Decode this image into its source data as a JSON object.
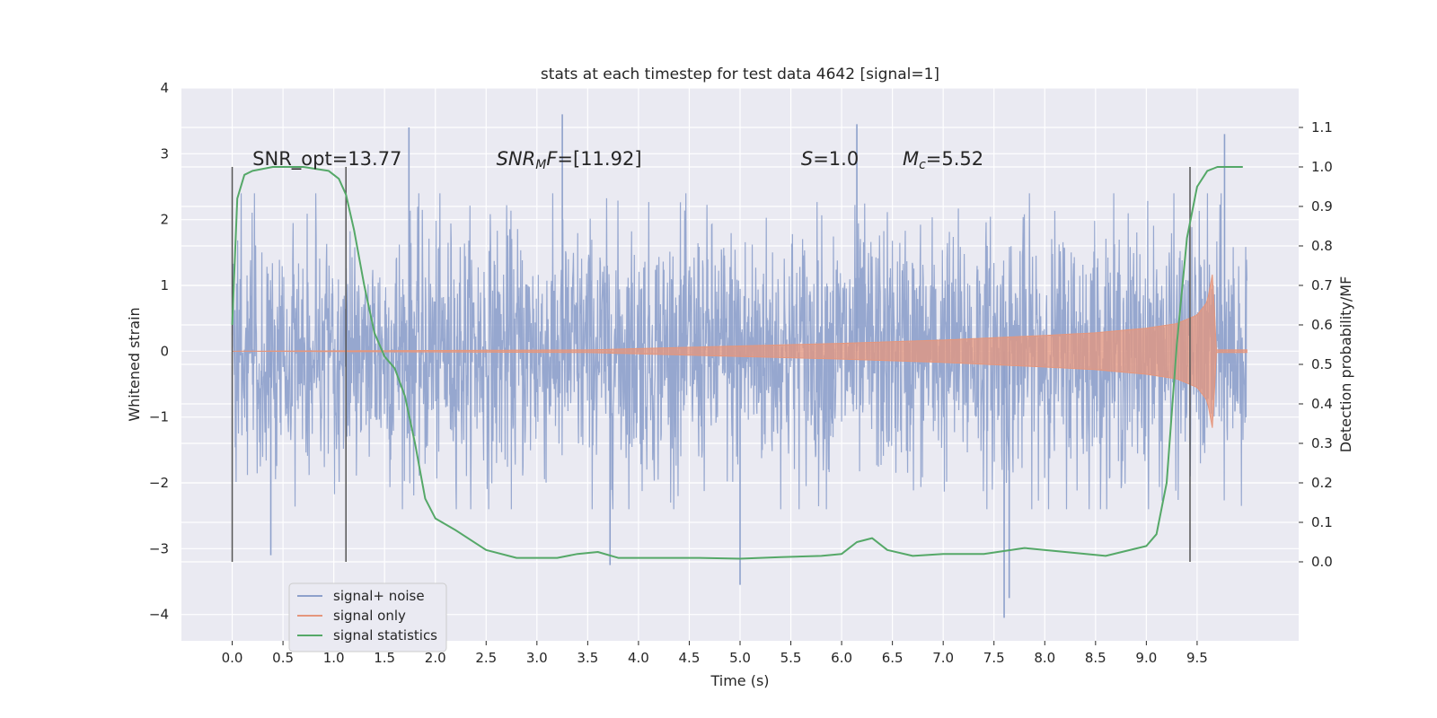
{
  "chart_data": {
    "type": "line",
    "title": "stats at each timestep for test data 4642 [signal=1]",
    "xlabel": "Time (s)",
    "ylabel": "Whitened strain",
    "y2label": "Detection probability/MF",
    "xlim": [
      -0.5,
      10.5
    ],
    "ylim": [
      -4.4,
      4.0
    ],
    "y2lim": [
      -0.2,
      1.2
    ],
    "grid": true,
    "legend_position": "lower-left",
    "x_ticks": [
      0.0,
      0.5,
      1.0,
      1.5,
      2.0,
      2.5,
      3.0,
      3.5,
      4.0,
      4.5,
      5.0,
      5.5,
      6.0,
      6.5,
      7.0,
      7.5,
      8.0,
      8.5,
      9.0,
      9.5
    ],
    "x_tick_labels": [
      "0.0",
      "0.5",
      "1.0",
      "1.5",
      "2.0",
      "2.5",
      "3.0",
      "3.5",
      "4.0",
      "4.5",
      "5.0",
      "5.5",
      "6.0",
      "6.5",
      "7.0",
      "7.5",
      "8.0",
      "8.5",
      "9.0",
      "9.5"
    ],
    "y_ticks": [
      4,
      3,
      2,
      1,
      0,
      -1,
      -2,
      -3,
      -4
    ],
    "y_tick_labels": [
      "4",
      "3",
      "2",
      "1",
      "0",
      "−1",
      "−2",
      "−3",
      "−4"
    ],
    "y2_ticks": [
      1.1,
      1.0,
      0.9,
      0.8,
      0.7,
      0.6,
      0.5,
      0.4,
      0.3,
      0.2,
      0.1,
      0.0
    ],
    "y2_tick_labels": [
      "1.1",
      "1.0",
      "0.9",
      "0.8",
      "0.7",
      "0.6",
      "0.5",
      "0.4",
      "0.3",
      "0.2",
      "0.1",
      "0.0"
    ],
    "annotations": [
      {
        "x": 0.2,
        "y2": 1.0,
        "text": "SNR_opt=13.77"
      },
      {
        "x": 2.6,
        "y2": 1.0,
        "text": "SNR_M F=[11.92]"
      },
      {
        "x": 5.6,
        "y2": 1.0,
        "text": "S=1.0"
      },
      {
        "x": 6.6,
        "y2": 1.0,
        "text": "M_c=5.52"
      }
    ],
    "vlines": [
      {
        "x": 0.0,
        "y2_range": [
          0.0,
          1.0
        ]
      },
      {
        "x": 1.12,
        "y2_range": [
          0.0,
          1.0
        ]
      },
      {
        "x": 9.43,
        "y2_range": [
          0.0,
          1.0
        ]
      }
    ],
    "series": [
      {
        "name": "signal+ noise",
        "color": "#8da0cb",
        "axis": "left",
        "x_range": [
          0.0,
          9.99
        ],
        "typical_envelope": [
          -1.6,
          1.6
        ],
        "peaks": [
          {
            "x": 1.74,
            "y": 3.4
          },
          {
            "x": 3.25,
            "y": 3.6
          },
          {
            "x": 6.15,
            "y": 3.45
          },
          {
            "x": 9.77,
            "y": 3.3
          },
          {
            "x": 0.38,
            "y": -3.1
          },
          {
            "x": 3.72,
            "y": -3.25
          },
          {
            "x": 5.0,
            "y": -3.55
          },
          {
            "x": 7.6,
            "y": -4.05
          },
          {
            "x": 7.65,
            "y": -3.75
          }
        ]
      },
      {
        "name": "signal only",
        "color": "#e5967c",
        "axis": "left",
        "x": [
          0.0,
          3.5,
          4.0,
          5.0,
          6.0,
          7.0,
          8.0,
          8.5,
          9.0,
          9.3,
          9.5,
          9.6,
          9.66,
          9.68,
          9.99
        ],
        "amplitude": [
          0.0,
          0.02,
          0.04,
          0.08,
          0.12,
          0.17,
          0.24,
          0.28,
          0.35,
          0.42,
          0.55,
          0.75,
          1.25,
          0.02,
          0.02
        ]
      },
      {
        "name": "signal statistics",
        "color": "#55a868",
        "axis": "right",
        "x": [
          0.0,
          0.05,
          0.12,
          0.2,
          0.4,
          0.7,
          0.95,
          1.05,
          1.12,
          1.2,
          1.3,
          1.4,
          1.5,
          1.6,
          1.7,
          1.8,
          1.9,
          2.0,
          2.2,
          2.5,
          2.8,
          3.2,
          3.4,
          3.6,
          3.8,
          4.2,
          4.6,
          5.0,
          5.4,
          5.8,
          6.0,
          6.15,
          6.3,
          6.45,
          6.7,
          7.0,
          7.4,
          7.8,
          8.2,
          8.6,
          9.0,
          9.1,
          9.2,
          9.3,
          9.4,
          9.5,
          9.6,
          9.7,
          9.8,
          9.95
        ],
        "y": [
          0.6,
          0.92,
          0.98,
          0.99,
          1.0,
          1.0,
          0.99,
          0.97,
          0.93,
          0.84,
          0.7,
          0.58,
          0.52,
          0.49,
          0.42,
          0.3,
          0.16,
          0.11,
          0.08,
          0.03,
          0.01,
          0.01,
          0.02,
          0.025,
          0.01,
          0.01,
          0.01,
          0.008,
          0.012,
          0.015,
          0.02,
          0.05,
          0.06,
          0.03,
          0.015,
          0.02,
          0.02,
          0.035,
          0.025,
          0.015,
          0.04,
          0.07,
          0.2,
          0.55,
          0.82,
          0.95,
          0.99,
          1.0,
          1.0,
          1.0
        ]
      }
    ]
  }
}
